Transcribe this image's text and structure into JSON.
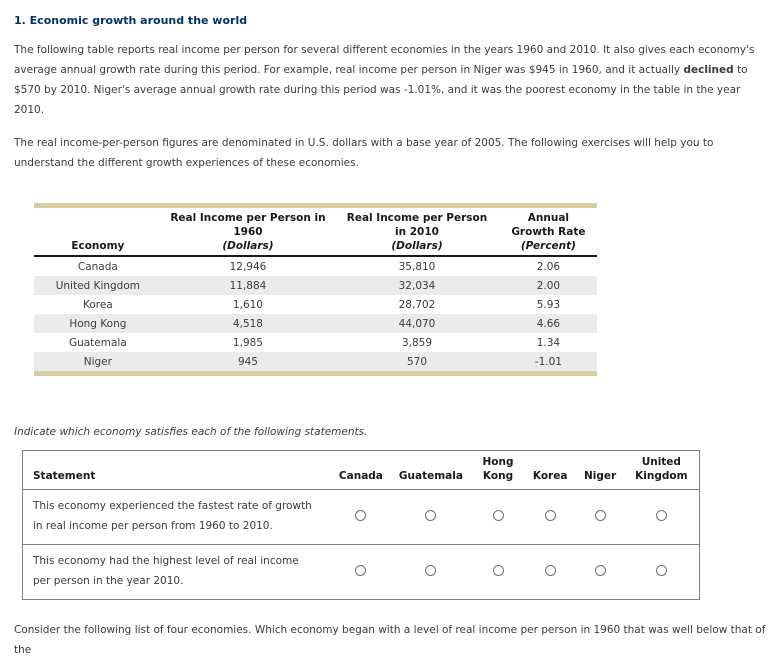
{
  "page": {
    "title": "1. Economic growth around the world"
  },
  "colors": {
    "heading_navy": "#003366",
    "table_accent_bar": "#d8cea2",
    "table_alt_row": "#ebebeb",
    "form_table_border": "#7f7f7f"
  },
  "intro": {
    "p1_before": "The following table reports real income per person for several different economies in the years 1960 and 2010. It also gives each economy's average annual growth rate during this period. For example, real income per person in Niger was $945 in 1960, and it actually ",
    "p1_bold": "declined",
    "p1_after": " to $570 by 2010. Niger's average annual growth rate during this period was -1.01%, and it was the poorest economy in the table in the year 2010.",
    "p2": "The real income-per-person figures are denominated in U.S. dollars with a base year of 2005. The following exercises will help you to understand the different growth experiences of these economies."
  },
  "income_table": {
    "header": {
      "economy": "Economy",
      "income_1960_title": "Real Income per Person in 1960",
      "income_1960_unit": "(Dollars)",
      "income_2010_title": "Real Income per Person in 2010",
      "income_2010_unit": "(Dollars)",
      "growth_title": "Annual Growth Rate",
      "growth_unit": "(Percent)"
    },
    "rows": [
      {
        "economy": "Canada",
        "income_1960": "12,946",
        "income_2010": "35,810",
        "growth_rate": "2.06"
      },
      {
        "economy": "United Kingdom",
        "income_1960": "11,884",
        "income_2010": "32,034",
        "growth_rate": "2.00"
      },
      {
        "economy": "Korea",
        "income_1960": "1,610",
        "income_2010": "28,702",
        "growth_rate": "5.93"
      },
      {
        "economy": "Hong Kong",
        "income_1960": "4,518",
        "income_2010": "44,070",
        "growth_rate": "4.66"
      },
      {
        "economy": "Guatemala",
        "income_1960": "1,985",
        "income_2010": "3,859",
        "growth_rate": "1.34"
      },
      {
        "economy": "Niger",
        "income_1960": "945",
        "income_2010": "570",
        "growth_rate": "-1.01"
      }
    ]
  },
  "instruction": "Indicate which economy satisfies each of the following statements.",
  "statement_table": {
    "statement_header": "Statement",
    "economies": [
      "Canada",
      "Guatemala",
      "Hong Kong",
      "Korea",
      "Niger",
      "United Kingdom"
    ],
    "statements": [
      "This economy experienced the fastest rate of growth in real income per person from 1960 to 2010.",
      "This economy had the highest level of real income per person in the year 2010."
    ]
  },
  "footer_text": "Consider the following list of four economies. Which economy began with a level of real income per person in 1960 that was well below that of the"
}
